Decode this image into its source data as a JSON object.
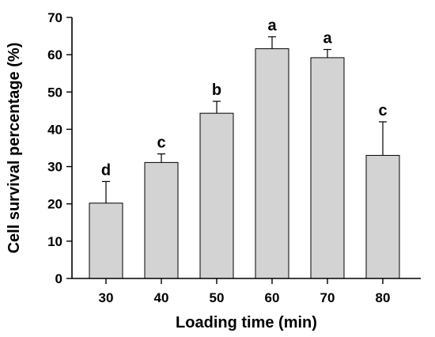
{
  "chart_data": {
    "type": "bar",
    "categories": [
      "30",
      "40",
      "50",
      "60",
      "70",
      "80"
    ],
    "values": [
      20.2,
      31.1,
      44.3,
      61.6,
      59.2,
      33.0
    ],
    "errors": [
      5.8,
      2.3,
      3.2,
      3.2,
      2.2,
      9.0
    ],
    "significance_labels": [
      "d",
      "c",
      "b",
      "a",
      "a",
      "c"
    ],
    "xlabel": "Loading time (min)",
    "ylabel": "Cell survival percentage (%)",
    "ylim": [
      0,
      70
    ],
    "yticks": [
      "0",
      "10",
      "20",
      "30",
      "40",
      "50",
      "60",
      "70"
    ],
    "grid": false,
    "colors": {
      "bar_fill": "#d3d3d3",
      "bar_stroke": "#000000"
    }
  }
}
